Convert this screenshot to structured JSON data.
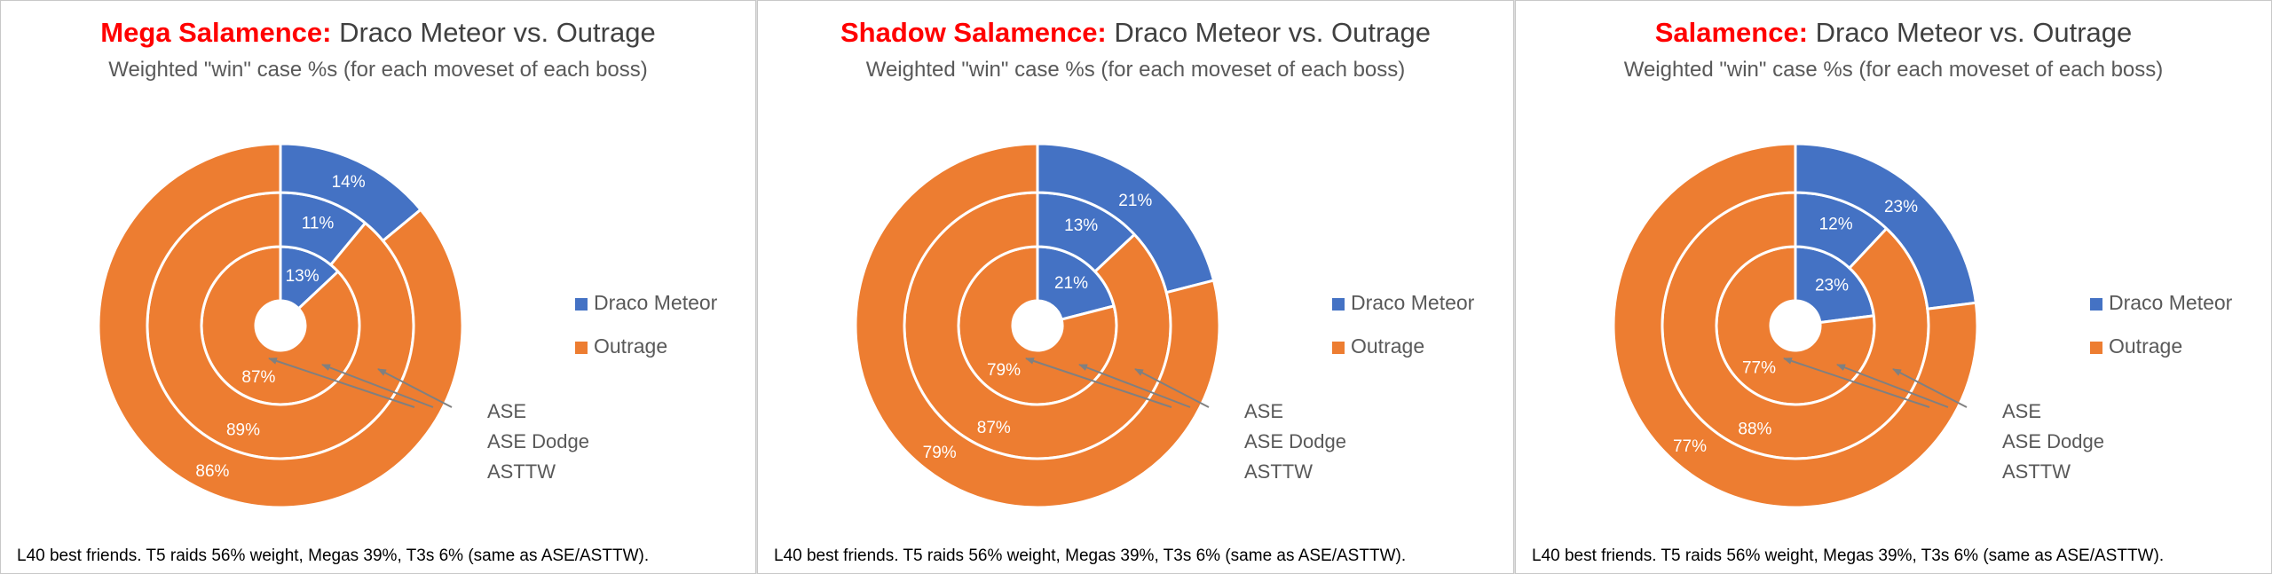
{
  "colors": {
    "draco_meteor": "#4472c4",
    "outrage": "#ed7d31",
    "arrow": "#808080",
    "boss_name": "#ff0000"
  },
  "legend_labels": [
    "Draco Meteor",
    "Outrage"
  ],
  "ring_labels": [
    "ASE",
    "ASE Dodge",
    "ASTTW"
  ],
  "chart_data": [
    {
      "type": "pie",
      "title_boss": "Mega Salamence:",
      "title_rest": " Draco Meteor vs. Outrage",
      "subtitle": "Weighted \"win\" case %s (for each moveset of each boss)",
      "series": [
        {
          "name": "ASE",
          "values": [
            13,
            87
          ],
          "labels": [
            "13%",
            "87%"
          ]
        },
        {
          "name": "ASE Dodge",
          "values": [
            11,
            89
          ],
          "labels": [
            "11%",
            "89%"
          ]
        },
        {
          "name": "ASTTW",
          "values": [
            14,
            86
          ],
          "labels": [
            "14%",
            "86%"
          ]
        }
      ],
      "legend": [
        "Draco Meteor",
        "Outrage"
      ],
      "legend_position": "right",
      "footnote": "L40 best friends. T5 raids 56% weight, Megas 39%, T3s 6% (same as ASE/ASTTW)."
    },
    {
      "type": "pie",
      "title_boss": "Shadow Salamence:",
      "title_rest": " Draco Meteor vs. Outrage",
      "subtitle": "Weighted \"win\" case %s (for each moveset of each boss)",
      "series": [
        {
          "name": "ASE",
          "values": [
            21,
            79
          ],
          "labels": [
            "21%",
            "79%"
          ]
        },
        {
          "name": "ASE Dodge",
          "values": [
            13,
            87
          ],
          "labels": [
            "13%",
            "87%"
          ]
        },
        {
          "name": "ASTTW",
          "values": [
            21,
            79
          ],
          "labels": [
            "21%",
            "79%"
          ]
        }
      ],
      "legend": [
        "Draco Meteor",
        "Outrage"
      ],
      "legend_position": "right",
      "footnote": "L40 best friends. T5 raids 56% weight, Megas 39%, T3s 6% (same as ASE/ASTTW)."
    },
    {
      "type": "pie",
      "title_boss": "Salamence:",
      "title_rest": " Draco Meteor vs. Outrage",
      "subtitle": "Weighted \"win\" case %s (for each moveset of each boss)",
      "series": [
        {
          "name": "ASE",
          "values": [
            23,
            77
          ],
          "labels": [
            "23%",
            "77%"
          ]
        },
        {
          "name": "ASE Dodge",
          "values": [
            12,
            88
          ],
          "labels": [
            "12%",
            "88%"
          ]
        },
        {
          "name": "ASTTW",
          "values": [
            23,
            77
          ],
          "labels": [
            "23%",
            "77%"
          ]
        }
      ],
      "legend": [
        "Draco Meteor",
        "Outrage"
      ],
      "legend_position": "right",
      "footnote": "L40 best friends. T5 raids 56% weight, Megas 39%, T3s 6% (same as ASE/ASTTW)."
    }
  ]
}
